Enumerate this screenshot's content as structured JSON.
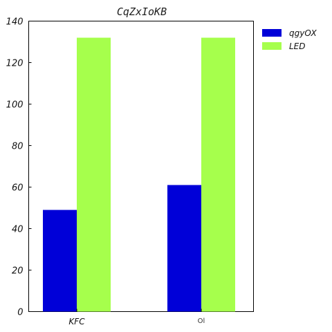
{
  "chart_data": {
    "type": "bar",
    "title": "CqZxIoKB",
    "categories": [
      "KFC",
      "Ol"
    ],
    "series": [
      {
        "name": "qgyOX",
        "values": [
          49,
          61
        ],
        "color": "#0000d8"
      },
      {
        "name": "LED",
        "values": [
          132,
          132
        ],
        "color": "#a6ff4c"
      }
    ],
    "ylim": [
      0,
      140
    ],
    "yticks": [
      0,
      20,
      40,
      60,
      80,
      100,
      120,
      140
    ],
    "grid": false,
    "legend": "top-right, outside plot"
  }
}
